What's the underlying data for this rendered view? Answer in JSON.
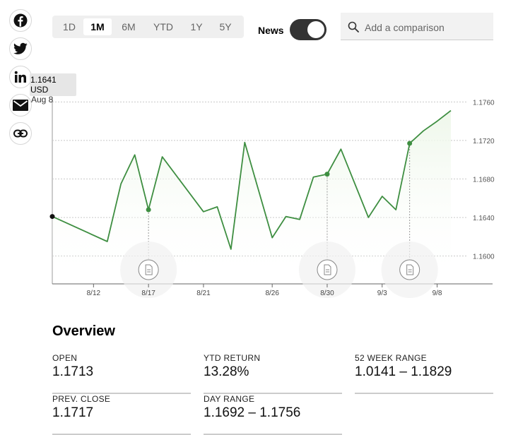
{
  "social": [
    {
      "name": "facebook-icon"
    },
    {
      "name": "twitter-icon"
    },
    {
      "name": "linkedin-icon"
    },
    {
      "name": "email-icon"
    },
    {
      "name": "link-icon"
    }
  ],
  "ranges": {
    "tabs": [
      "1D",
      "1M",
      "6M",
      "YTD",
      "1Y",
      "5Y"
    ],
    "active": "1M"
  },
  "news": {
    "label": "News",
    "enabled": true
  },
  "compare": {
    "placeholder": "Add a comparison",
    "icon": "search-icon"
  },
  "tooltip": {
    "price": "1.1641 USD",
    "date": "Aug 8"
  },
  "colors": {
    "line": "#3e8e41",
    "area": "#eef7ea",
    "grid": "#c8c8c8"
  },
  "chart_data": {
    "type": "area",
    "x_tick_labels": [
      "8/12",
      "8/17",
      "8/21",
      "8/26",
      "8/30",
      "9/3",
      "9/8"
    ],
    "y_tick_labels": [
      "1.1760",
      "1.1720",
      "1.1680",
      "1.1640",
      "1.1600"
    ],
    "y_ticks": [
      1.176,
      1.172,
      1.168,
      1.164,
      1.16
    ],
    "ylim": [
      1.1571,
      1.1772
    ],
    "grid": true,
    "x": [
      0,
      4,
      5,
      6,
      7,
      8,
      11,
      12,
      13,
      14,
      16,
      17,
      18,
      19,
      20,
      21,
      23,
      24,
      25,
      26,
      27,
      28,
      29
    ],
    "values": [
      1.1641,
      1.1615,
      1.1675,
      1.1705,
      1.1648,
      1.1703,
      1.1646,
      1.1651,
      1.1607,
      1.1718,
      1.1619,
      1.1641,
      1.1638,
      1.1682,
      1.1685,
      1.1711,
      1.164,
      1.1662,
      1.1648,
      1.1717,
      1.173,
      1.174,
      1.1751
    ],
    "x_tick_positions": [
      3,
      7,
      11,
      16,
      20,
      24,
      28
    ],
    "news_markers": [
      4,
      14,
      19
    ],
    "hover_index": 0
  },
  "overview": {
    "title": "Overview",
    "stats": [
      {
        "label": "OPEN",
        "value": "1.1713"
      },
      {
        "label": "YTD RETURN",
        "value": "13.28%"
      },
      {
        "label": "52 WEEK RANGE",
        "value": "1.0141 – 1.1829"
      },
      {
        "label": "PREV. CLOSE",
        "value": "1.1717"
      },
      {
        "label": "DAY RANGE",
        "value": "1.1692 – 1.1756"
      }
    ]
  }
}
